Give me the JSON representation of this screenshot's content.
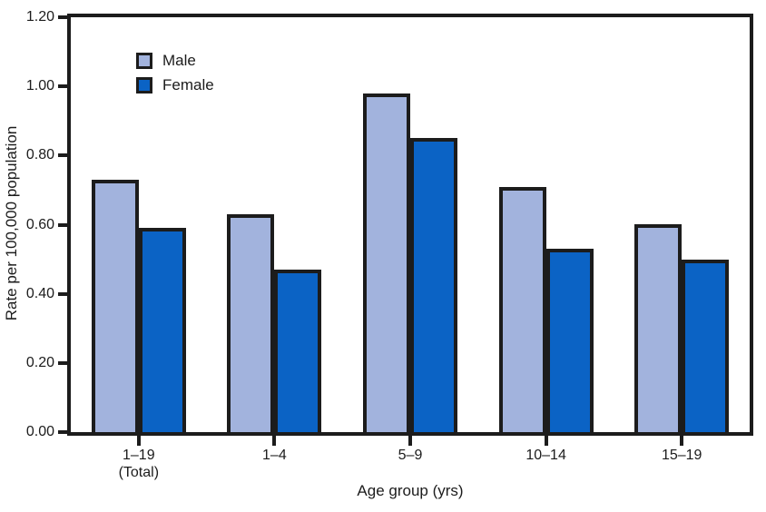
{
  "figure": {
    "background": "#ffffff",
    "axis_color": "#1c1c1c",
    "text_color": "#1c1c1c"
  },
  "chart_data": {
    "type": "bar",
    "title": "",
    "xlabel": "Age group (yrs)",
    "ylabel": "Rate per 100,000 population",
    "categories": [
      [
        "1–19",
        "(Total)"
      ],
      [
        "1–4"
      ],
      [
        "5–9"
      ],
      [
        "10–14"
      ],
      [
        "15–19"
      ]
    ],
    "series": [
      {
        "name": "Male",
        "color": "#a2b3dd",
        "values": [
          0.73,
          0.63,
          0.98,
          0.71,
          0.6
        ]
      },
      {
        "name": "Female",
        "color": "#0b63c5",
        "values": [
          0.59,
          0.47,
          0.85,
          0.53,
          0.5
        ]
      }
    ],
    "ylim": [
      0,
      1.2
    ],
    "ytick_labels": [
      "0.00",
      "0.20",
      "0.40",
      "0.60",
      "0.80",
      "1.00",
      "1.20"
    ],
    "grid": false,
    "legend_position": "upper-left-inside",
    "bar_outline_color": "#1c1c1c"
  }
}
